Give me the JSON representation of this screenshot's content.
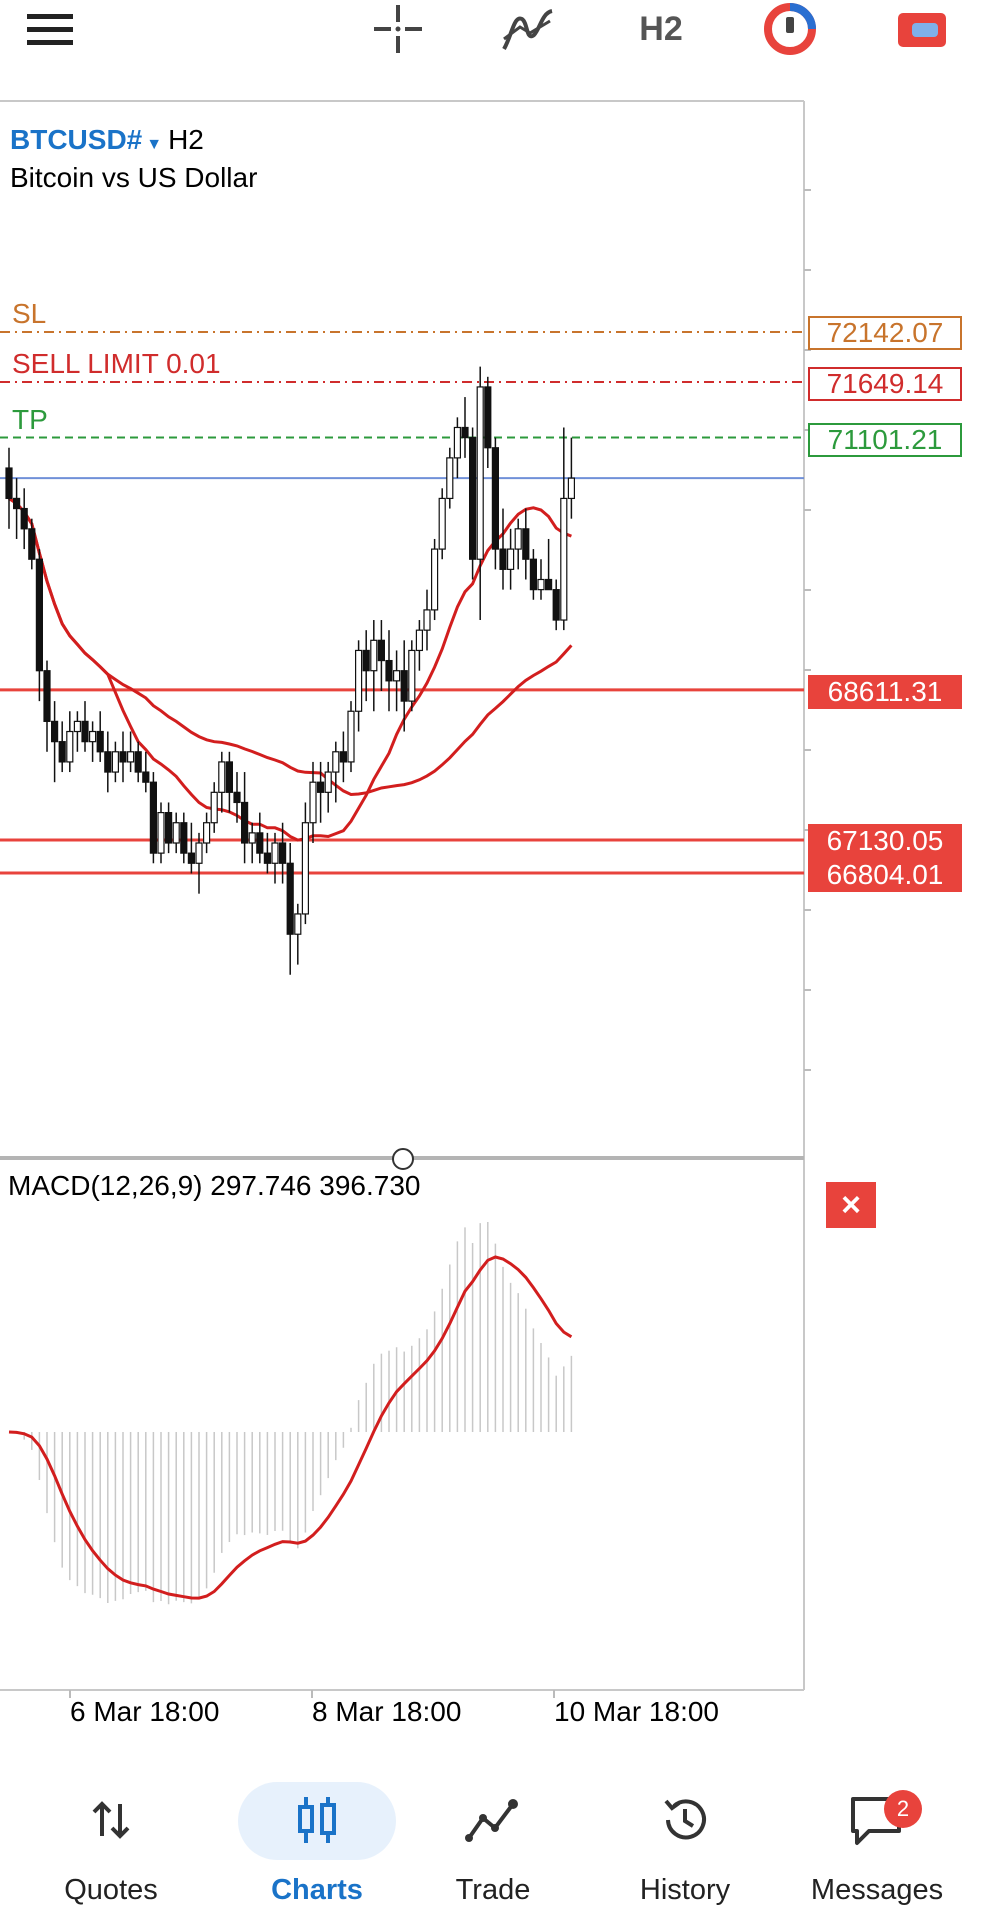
{
  "toolbar": {
    "menu_icon": "hamburger-menu-icon",
    "crosshair_icon": "crosshair-icon",
    "indicators_icon": "indicators-icon",
    "timeframe": "H2",
    "one_click_icon": "one-click-trading-icon",
    "account_icon": "account-icon"
  },
  "symbol": {
    "name": "BTCUSD#",
    "timeframe": "H2",
    "description": "Bitcoin vs US Dollar"
  },
  "orders": {
    "sl": {
      "label": "SL",
      "price": "72142.07",
      "color": "#c8742c"
    },
    "sell_limit": {
      "label": "SELL LIMIT 0.01",
      "price": "71649.14",
      "color": "#d02c2c"
    },
    "tp": {
      "label": "TP",
      "price": "71101.21",
      "color": "#2c9a3c"
    }
  },
  "levels": [
    "68611.31",
    "67130.05",
    "66804.01"
  ],
  "macd": {
    "label": "MACD(12,26,9) 297.746 396.730",
    "close_label": "×"
  },
  "dates": [
    "6 Mar 18:00",
    "8 Mar 18:00",
    "10 Mar 18:00"
  ],
  "nav": {
    "items": [
      {
        "label": "Quotes",
        "icon": "quotes-arrows-icon"
      },
      {
        "label": "Charts",
        "icon": "charts-candles-icon",
        "active": true
      },
      {
        "label": "Trade",
        "icon": "trade-line-icon"
      },
      {
        "label": "History",
        "icon": "history-clock-icon"
      },
      {
        "label": "Messages",
        "icon": "messages-bubble-icon",
        "badge": "2"
      }
    ]
  },
  "colors": {
    "accent": "#1a73c8",
    "level_red": "#e8433c",
    "ma_red": "#d21e1e"
  },
  "chart_data": {
    "type": "candlestick",
    "title": "BTCUSD# H2",
    "subtitle": "Bitcoin vs US Dollar",
    "xlabel": "",
    "ylabel": "",
    "x_ticks": [
      "6 Mar 18:00",
      "8 Mar 18:00",
      "10 Mar 18:00"
    ],
    "price_scale_labels": [
      "72142.07",
      "71649.14",
      "71101.21",
      "68611.31",
      "67130.05",
      "66804.01"
    ],
    "annotations": [
      "SL",
      "SELL LIMIT 0.01",
      "TP"
    ],
    "ohlc": [
      [
        70800,
        71000,
        70200,
        70500
      ],
      [
        70500,
        70700,
        70100,
        70400
      ],
      [
        70400,
        70600,
        70000,
        70200
      ],
      [
        70200,
        70300,
        69800,
        69900
      ],
      [
        69900,
        70000,
        68500,
        68800
      ],
      [
        68800,
        68900,
        68000,
        68300
      ],
      [
        68300,
        68500,
        67700,
        68100
      ],
      [
        68100,
        68300,
        67800,
        67900
      ],
      [
        67900,
        68400,
        67800,
        68200
      ],
      [
        68200,
        68400,
        68000,
        68300
      ],
      [
        68300,
        68500,
        68000,
        68100
      ],
      [
        68100,
        68300,
        67900,
        68200
      ],
      [
        68200,
        68400,
        67900,
        68000
      ],
      [
        68000,
        68200,
        67600,
        67800
      ],
      [
        67800,
        68100,
        67700,
        68000
      ],
      [
        68000,
        68200,
        67700,
        67900
      ],
      [
        67900,
        68200,
        67800,
        68000
      ],
      [
        68000,
        68100,
        67700,
        67800
      ],
      [
        67800,
        68000,
        67600,
        67700
      ],
      [
        67700,
        67800,
        66900,
        67000
      ],
      [
        67000,
        67500,
        66900,
        67400
      ],
      [
        67400,
        67500,
        67000,
        67100
      ],
      [
        67100,
        67400,
        67000,
        67300
      ],
      [
        67300,
        67400,
        66900,
        67000
      ],
      [
        67000,
        67300,
        66800,
        66900
      ],
      [
        66900,
        67200,
        66600,
        67100
      ],
      [
        67100,
        67400,
        67000,
        67300
      ],
      [
        67300,
        67700,
        67200,
        67600
      ],
      [
        67600,
        68000,
        67400,
        67900
      ],
      [
        67900,
        68000,
        67400,
        67600
      ],
      [
        67600,
        67800,
        67300,
        67500
      ],
      [
        67500,
        67800,
        66900,
        67100
      ],
      [
        67100,
        67300,
        66900,
        67200
      ],
      [
        67200,
        67400,
        66900,
        67000
      ],
      [
        67000,
        67200,
        66800,
        66900
      ],
      [
        66900,
        67200,
        66700,
        67100
      ],
      [
        67100,
        67300,
        66700,
        66900
      ],
      [
        66900,
        67100,
        65800,
        66200
      ],
      [
        66200,
        66500,
        65900,
        66400
      ],
      [
        66400,
        67500,
        66300,
        67300
      ],
      [
        67300,
        67900,
        67100,
        67700
      ],
      [
        67700,
        67900,
        67300,
        67600
      ],
      [
        67600,
        67900,
        67400,
        67800
      ],
      [
        67800,
        68100,
        67500,
        68000
      ],
      [
        68000,
        68200,
        67700,
        67900
      ],
      [
        67900,
        68500,
        67800,
        68400
      ],
      [
        68400,
        69100,
        68200,
        69000
      ],
      [
        69000,
        69200,
        68500,
        68800
      ],
      [
        68800,
        69300,
        68400,
        69100
      ],
      [
        69100,
        69300,
        68600,
        68900
      ],
      [
        68900,
        69200,
        68400,
        68700
      ],
      [
        68700,
        69000,
        68400,
        68800
      ],
      [
        68800,
        69100,
        68200,
        68500
      ],
      [
        68500,
        69100,
        68400,
        69000
      ],
      [
        69000,
        69300,
        68800,
        69200
      ],
      [
        69200,
        69600,
        69000,
        69400
      ],
      [
        69400,
        70100,
        69300,
        70000
      ],
      [
        70000,
        70600,
        69900,
        70500
      ],
      [
        70500,
        71000,
        70400,
        70900
      ],
      [
        70900,
        71300,
        70700,
        71200
      ],
      [
        71200,
        71500,
        70900,
        71100
      ],
      [
        71100,
        71200,
        69700,
        69900
      ],
      [
        69900,
        71800,
        69300,
        71600
      ],
      [
        71600,
        71700,
        70800,
        71000
      ],
      [
        71000,
        71100,
        69800,
        70000
      ],
      [
        70000,
        70400,
        69600,
        69800
      ],
      [
        69800,
        70200,
        69600,
        70000
      ],
      [
        70000,
        70300,
        69800,
        70200
      ],
      [
        70200,
        70400,
        69700,
        69900
      ],
      [
        69900,
        70000,
        69500,
        69600
      ],
      [
        69600,
        69900,
        69500,
        69700
      ],
      [
        69700,
        70100,
        69600,
        69600
      ],
      [
        69600,
        69700,
        69200,
        69300
      ],
      [
        69300,
        71200,
        69200,
        70500
      ],
      [
        70500,
        71100,
        70300,
        70700
      ]
    ]
  }
}
